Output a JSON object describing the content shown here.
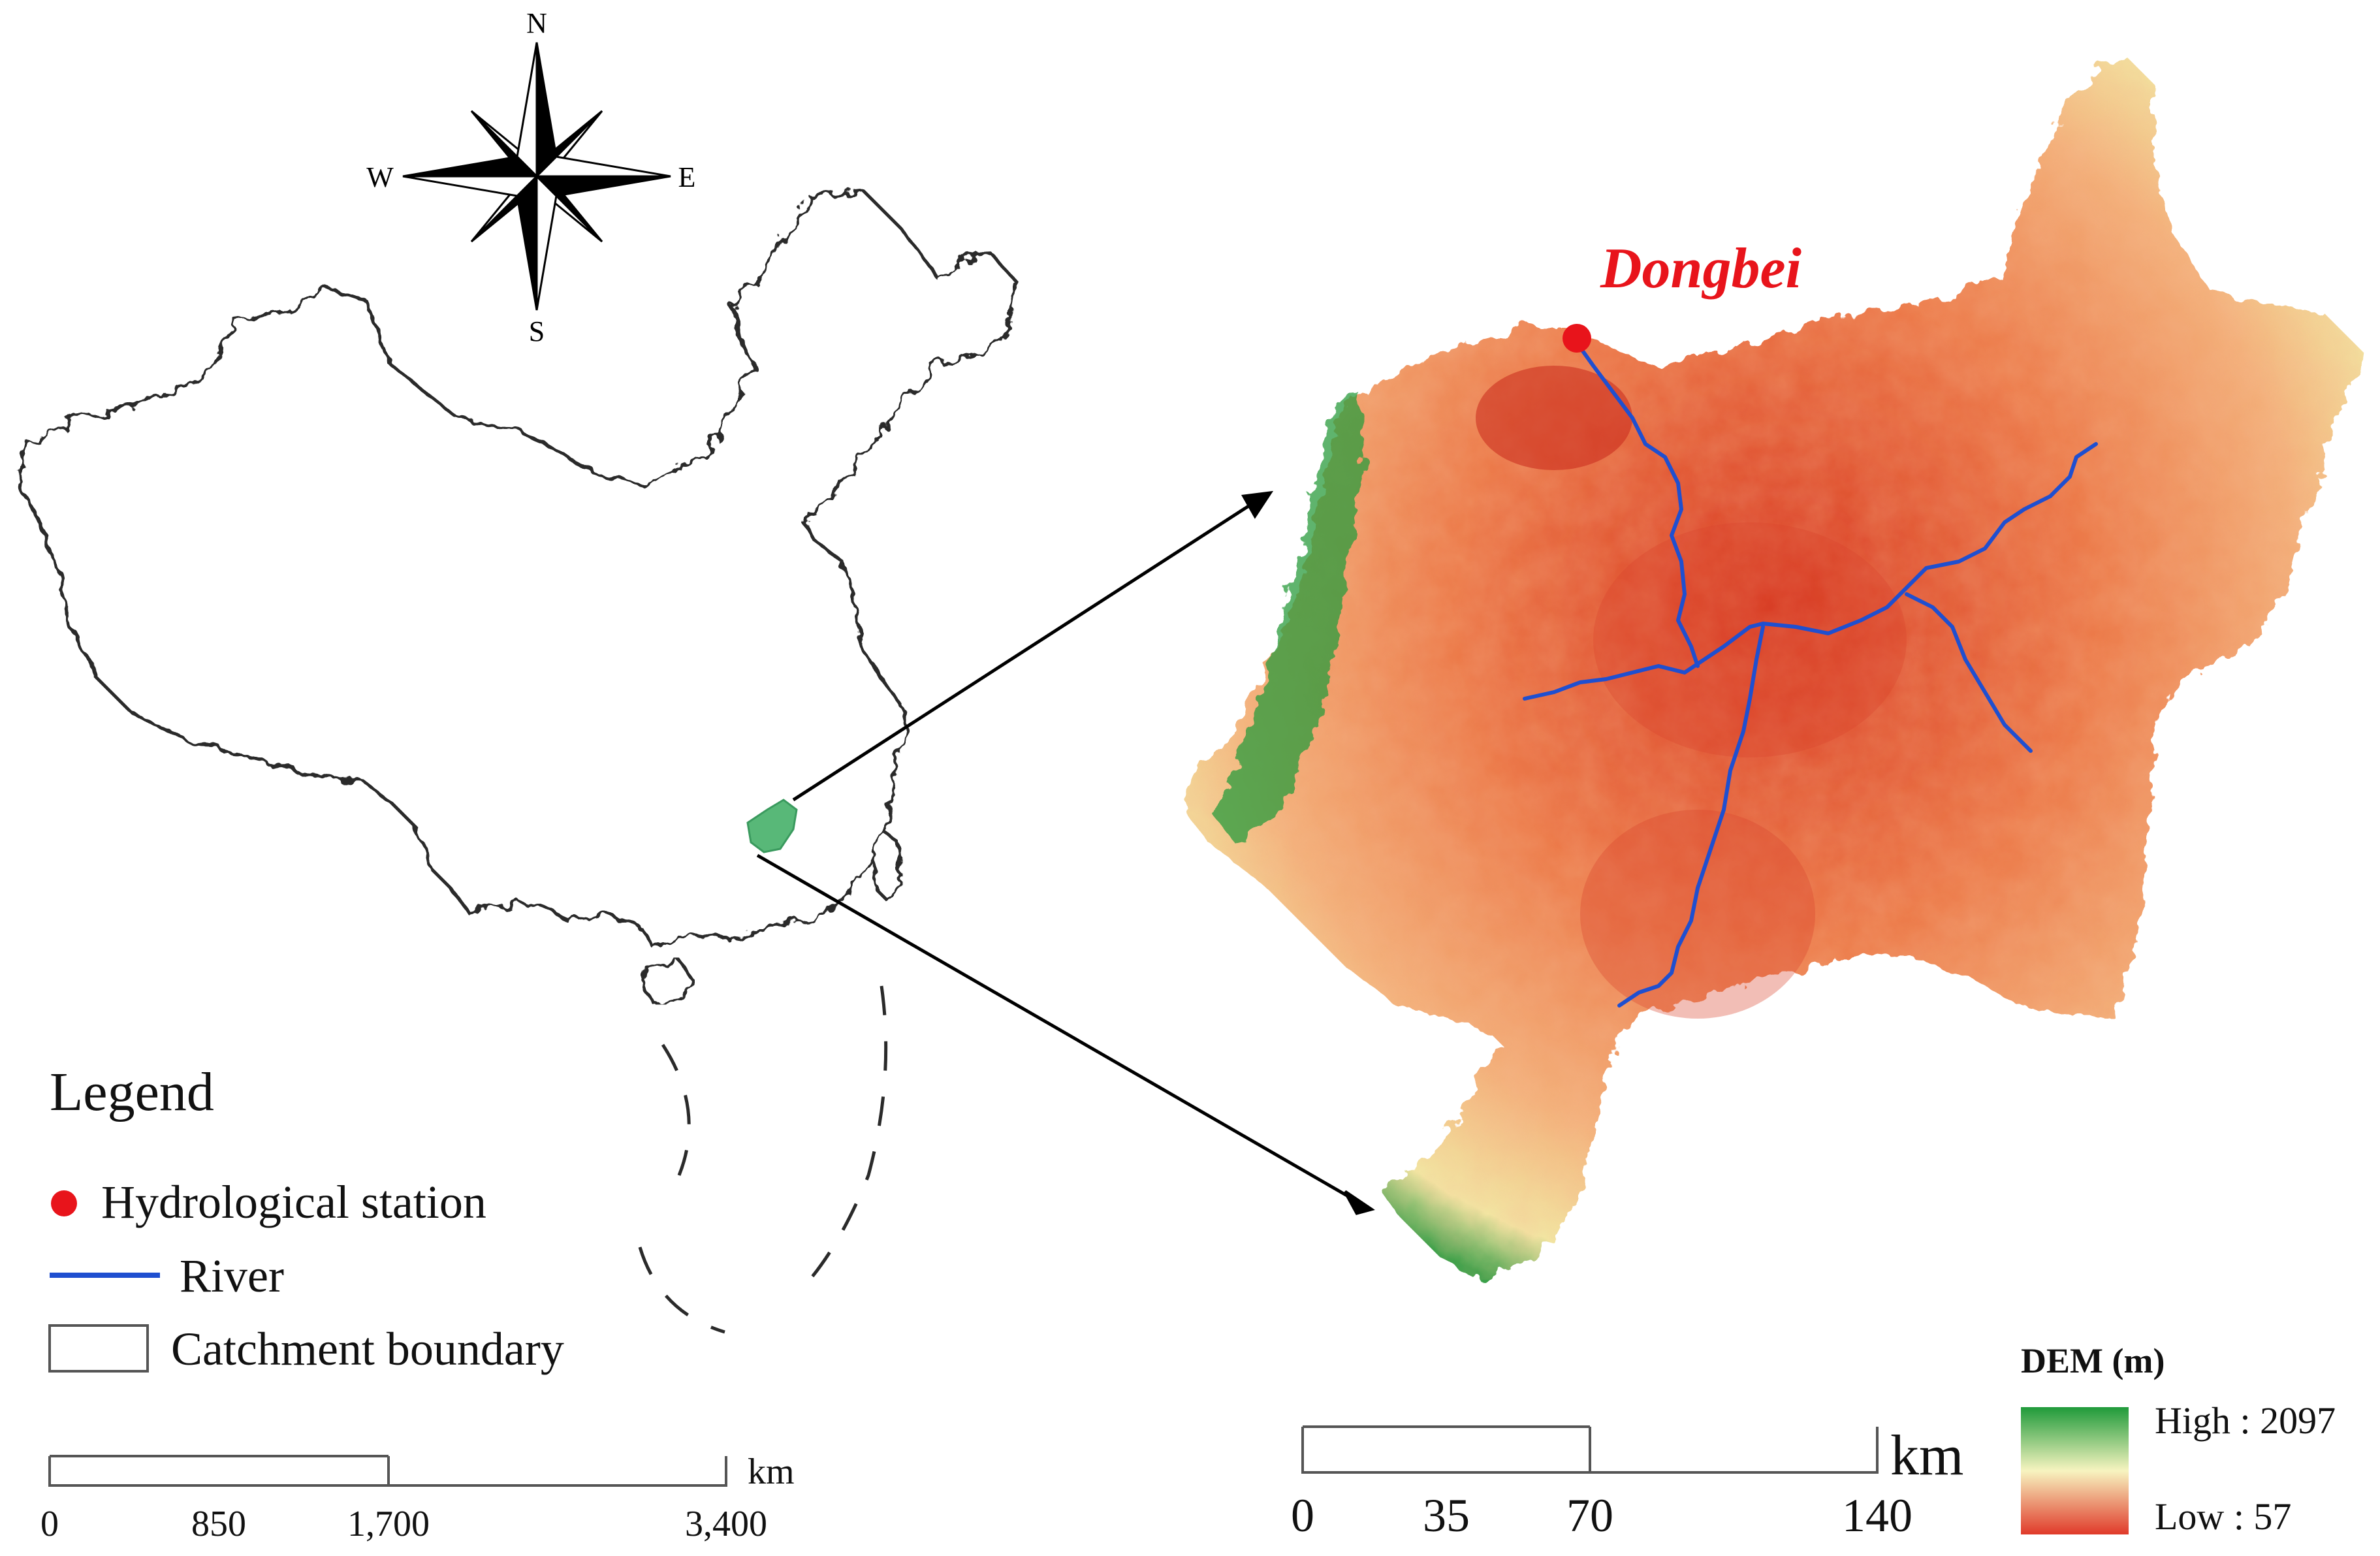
{
  "compass": {
    "n": "N",
    "s": "S",
    "e": "E",
    "w": "W"
  },
  "station": {
    "name": "Dongbei",
    "color": "#e8141b"
  },
  "river_color": "#1f4fd0",
  "catchment_color": "#58b878",
  "legend": {
    "title": "Legend",
    "items": [
      {
        "label": "Hydrological station",
        "symbol": "red-dot-icon"
      },
      {
        "label": "River",
        "symbol": "blue-line-icon"
      },
      {
        "label": "Catchment boundary",
        "symbol": "rectangle-icon"
      }
    ]
  },
  "scale_left": {
    "ticks": [
      "0",
      "850",
      "1,700",
      "3,400"
    ],
    "unit": "km"
  },
  "scale_right": {
    "ticks": [
      "0",
      "35",
      "70",
      "140"
    ],
    "unit": "km"
  },
  "dem": {
    "title": "DEM (m)",
    "high_label": "High : 2097",
    "low_label": "Low : 57",
    "colors": [
      "#1f9a3a",
      "#f7f4c0",
      "#e03a2a"
    ]
  }
}
